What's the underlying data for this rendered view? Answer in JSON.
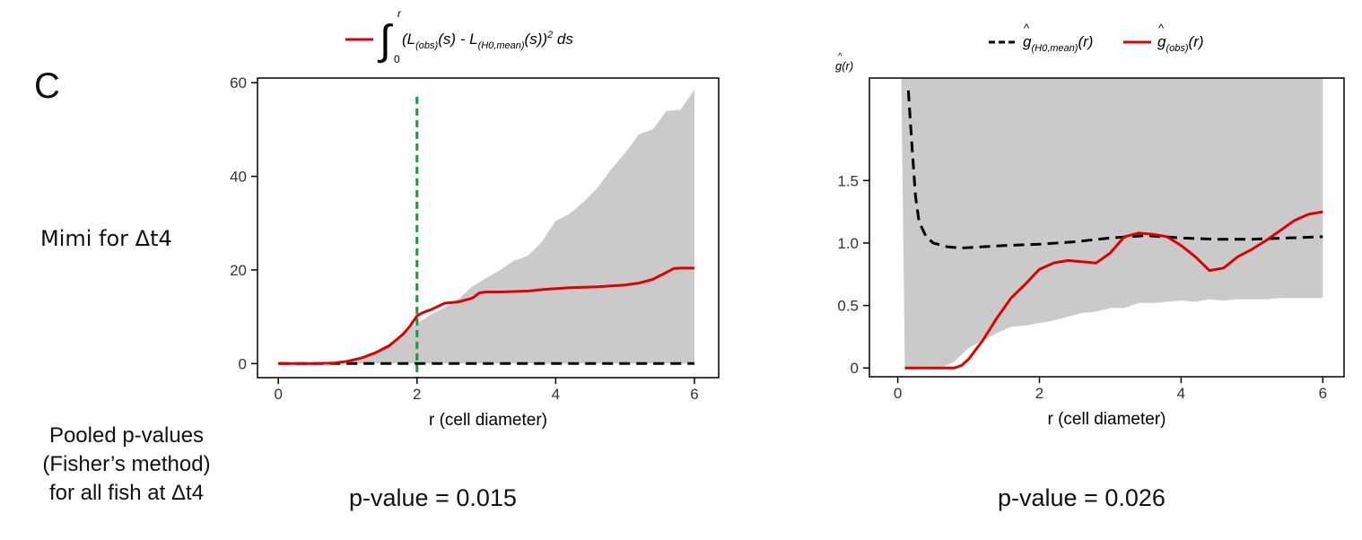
{
  "figure": {
    "panel_letter": "C",
    "side_label": "Mimi for Δt4",
    "pooled_lines": [
      "Pooled p-values",
      "(Fisher’s method)",
      "for all fish at Δt4"
    ]
  },
  "colors": {
    "observed": "#e00000",
    "null_mean": "#000000",
    "envelope": "#cacaca",
    "marker": "#1a9641"
  },
  "chart_data": [
    {
      "type": "line",
      "legend_position": "top",
      "legend": [
        {
          "series": "observed",
          "text": "∫₀ʳ(L(obs)(s) - L(H0,mean)(s))² ds"
        }
      ],
      "xlabel": "r (cell diameter)",
      "ylabel": "",
      "xlim": [
        -0.3,
        6.35
      ],
      "ylim": [
        -3,
        61
      ],
      "xticks": [
        0,
        2,
        4,
        6
      ],
      "xtick_labels": [
        "0",
        "2",
        "4",
        "6"
      ],
      "yticks": [
        0,
        20,
        40,
        60
      ],
      "ytick_labels": [
        "0",
        "20",
        "40",
        "60"
      ],
      "vline": {
        "x": 2,
        "y_top": 57,
        "style": "dashed",
        "color": "marker"
      },
      "envelope": {
        "x": [
          1.0,
          1.2,
          1.4,
          1.6,
          1.8,
          2.0,
          2.2,
          2.4,
          2.6,
          2.8,
          3.0,
          3.2,
          3.4,
          3.6,
          3.8,
          4.0,
          4.2,
          4.4,
          4.6,
          4.8,
          5.0,
          5.2,
          5.4,
          5.6,
          5.8,
          6.0
        ],
        "lower": [
          0,
          0,
          0,
          0,
          0,
          0,
          0,
          0,
          0,
          0,
          0,
          0,
          0,
          0,
          0,
          0,
          0,
          0,
          0,
          0,
          0,
          0,
          0,
          0,
          0,
          0
        ],
        "upper": [
          0.3,
          1.2,
          2.6,
          4.3,
          6.3,
          8.5,
          10.5,
          12.0,
          13.8,
          16.5,
          18.3,
          20.0,
          22.0,
          23.0,
          26.0,
          30.5,
          32.0,
          34.5,
          37.5,
          41.5,
          45.0,
          49.0,
          50.0,
          54.0,
          54.2,
          58.5
        ]
      },
      "series": [
        {
          "key": "observed",
          "style": "solid",
          "x": [
            0.0,
            0.5,
            0.8,
            1.0,
            1.2,
            1.4,
            1.6,
            1.8,
            1.9,
            2.0,
            2.1,
            2.2,
            2.4,
            2.6,
            2.8,
            2.9,
            3.0,
            3.2,
            3.4,
            3.6,
            3.8,
            4.0,
            4.2,
            4.4,
            4.6,
            4.8,
            5.0,
            5.2,
            5.4,
            5.6,
            5.7,
            5.8,
            6.0
          ],
          "y": [
            0.0,
            0.0,
            0.1,
            0.5,
            1.2,
            2.3,
            3.8,
            6.3,
            8.0,
            10.2,
            11.0,
            11.5,
            12.9,
            13.2,
            14.0,
            15.1,
            15.3,
            15.3,
            15.4,
            15.5,
            15.8,
            16.0,
            16.2,
            16.3,
            16.4,
            16.6,
            16.8,
            17.2,
            18.0,
            19.5,
            20.3,
            20.4,
            20.4
          ]
        },
        {
          "key": "null_mean",
          "style": "dashed",
          "x": [
            0,
            6
          ],
          "y": [
            0,
            0
          ]
        }
      ],
      "p_value_text": "p-value = 0.015"
    },
    {
      "type": "line",
      "legend_position": "top",
      "legend": [
        {
          "series": "null_mean",
          "text": "ĝ(H0,mean)(r)"
        },
        {
          "series": "observed",
          "text": "ĝ(obs)(r)"
        }
      ],
      "xlabel": "r (cell diameter)",
      "ylabel": "ĝ(r)",
      "xlim": [
        -0.4,
        6.3
      ],
      "ylim": [
        -0.07,
        2.32
      ],
      "xticks": [
        0,
        2,
        4,
        6
      ],
      "xtick_labels": [
        "0",
        "2",
        "4",
        "6"
      ],
      "yticks": [
        0,
        0.5,
        1.0,
        1.5
      ],
      "ytick_labels": [
        "0",
        "0.5",
        "1.0",
        "1.5"
      ],
      "envelope": {
        "x": [
          0.05,
          0.1,
          0.2,
          0.4,
          0.6,
          0.8,
          1.0,
          1.2,
          1.4,
          1.6,
          1.8,
          2.0,
          2.2,
          2.4,
          2.6,
          2.8,
          3.0,
          3.2,
          3.4,
          3.6,
          3.8,
          4.0,
          4.2,
          4.4,
          4.6,
          4.8,
          5.0,
          5.2,
          5.4,
          5.6,
          5.8,
          6.0
        ],
        "lower": [
          2.32,
          0.0,
          0.0,
          0.0,
          0.0,
          0.05,
          0.16,
          0.22,
          0.28,
          0.33,
          0.34,
          0.36,
          0.38,
          0.41,
          0.44,
          0.45,
          0.48,
          0.48,
          0.52,
          0.52,
          0.53,
          0.54,
          0.53,
          0.55,
          0.54,
          0.55,
          0.55,
          0.55,
          0.56,
          0.56,
          0.56,
          0.56
        ],
        "upper": [
          2.32,
          2.32,
          2.32,
          2.32,
          2.32,
          2.32,
          2.32,
          2.32,
          2.32,
          2.32,
          2.32,
          2.32,
          2.32,
          2.32,
          2.32,
          2.32,
          2.32,
          2.32,
          2.32,
          2.32,
          2.32,
          2.32,
          2.32,
          2.32,
          2.32,
          2.32,
          2.32,
          2.32,
          2.32,
          2.32,
          2.32,
          2.32
        ]
      },
      "series": [
        {
          "key": "null_mean",
          "style": "dashed",
          "x": [
            0.15,
            0.2,
            0.25,
            0.3,
            0.4,
            0.5,
            0.7,
            0.9,
            1.2,
            1.5,
            2.0,
            2.5,
            3.0,
            3.5,
            4.0,
            4.5,
            5.0,
            5.5,
            6.0
          ],
          "y": [
            2.22,
            1.78,
            1.38,
            1.17,
            1.05,
            1.0,
            0.97,
            0.96,
            0.97,
            0.98,
            0.99,
            1.01,
            1.04,
            1.06,
            1.04,
            1.03,
            1.03,
            1.04,
            1.05
          ]
        },
        {
          "key": "observed",
          "style": "solid",
          "x": [
            0.1,
            0.4,
            0.8,
            0.9,
            1.0,
            1.2,
            1.4,
            1.6,
            1.8,
            2.0,
            2.2,
            2.4,
            2.6,
            2.8,
            3.0,
            3.2,
            3.4,
            3.6,
            3.8,
            4.0,
            4.2,
            4.4,
            4.6,
            4.8,
            5.0,
            5.2,
            5.4,
            5.6,
            5.8,
            6.0
          ],
          "y": [
            0.0,
            0.0,
            0.0,
            0.02,
            0.07,
            0.22,
            0.4,
            0.56,
            0.67,
            0.79,
            0.84,
            0.86,
            0.85,
            0.84,
            0.92,
            1.05,
            1.08,
            1.07,
            1.05,
            0.98,
            0.89,
            0.78,
            0.8,
            0.89,
            0.95,
            1.02,
            1.1,
            1.18,
            1.23,
            1.25
          ]
        }
      ],
      "p_value_text": "p-value = 0.026"
    }
  ]
}
